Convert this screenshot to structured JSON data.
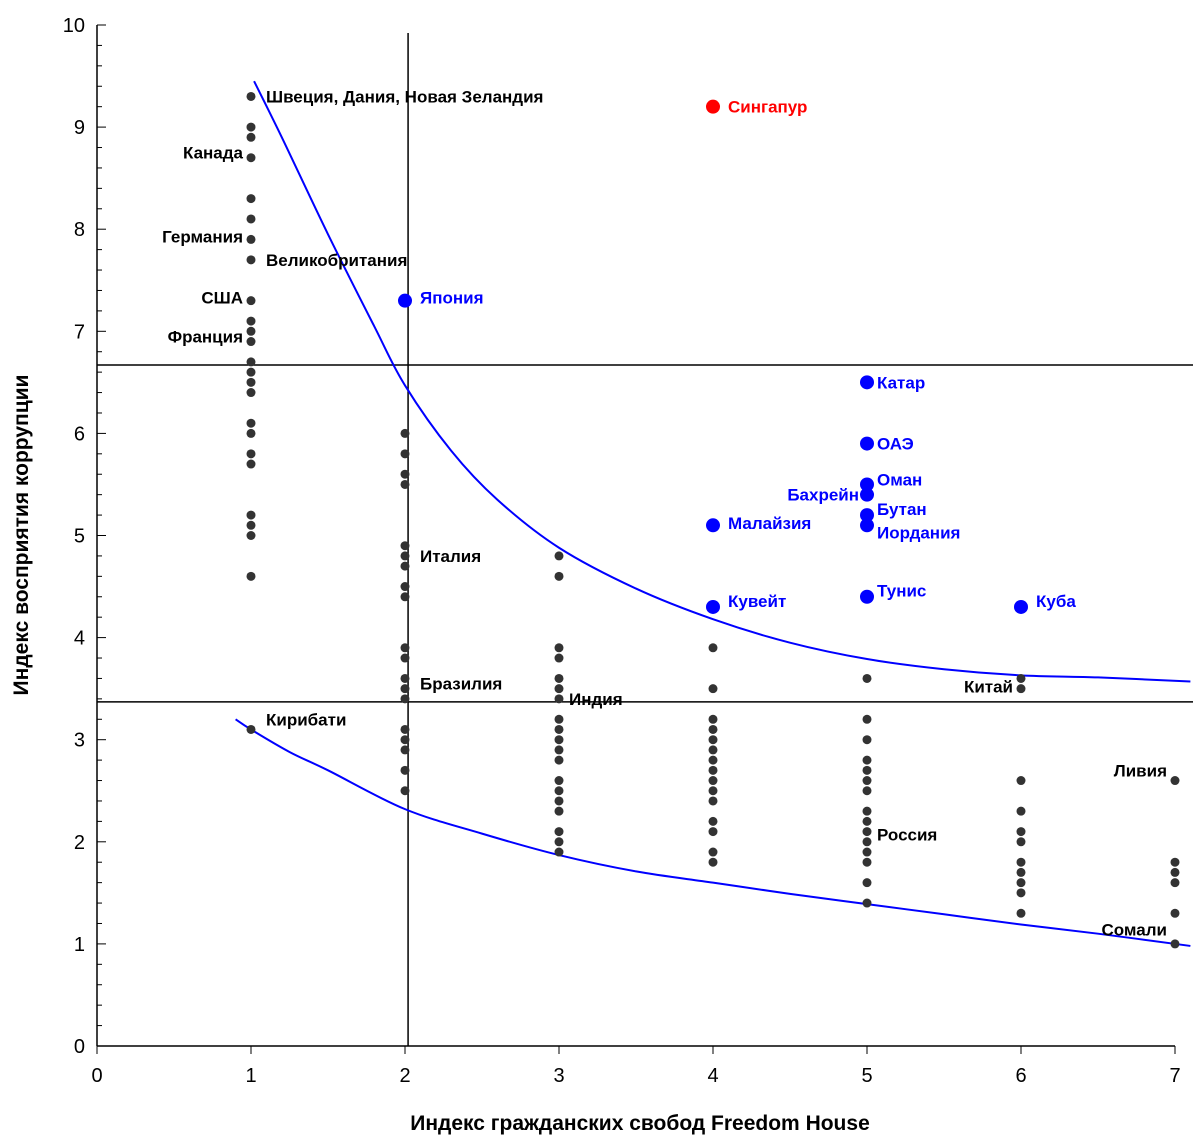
{
  "chart_data": {
    "type": "scatter",
    "xlabel": "Индекс гражданских свобод Freedom House",
    "ylabel": "Индекс восприятия коррупции",
    "xlim": [
      0,
      7
    ],
    "ylim": [
      0,
      10
    ],
    "xticks": [
      "0",
      "1",
      "2",
      "3",
      "4",
      "5",
      "6",
      "7"
    ],
    "yticks": [
      "0",
      "1",
      "2",
      "3",
      "4",
      "5",
      "6",
      "7",
      "8",
      "9",
      "10"
    ],
    "grid": false,
    "colors": {
      "gray": "#333333",
      "blue": "#0000ff",
      "red": "#ff0000",
      "ref_line": "#000000",
      "curve": "#0000ff"
    },
    "reference_lines": {
      "vertical_x": 2.02,
      "horizontal_y": [
        6.67,
        3.37
      ]
    },
    "series": [
      {
        "color": "gray",
        "points": [
          [
            1,
            9.3
          ],
          [
            1,
            9.0
          ],
          [
            1,
            8.9
          ],
          [
            1,
            8.7
          ],
          [
            1,
            8.3
          ],
          [
            1,
            8.1
          ],
          [
            1,
            7.9
          ],
          [
            1,
            7.7
          ],
          [
            1,
            7.3
          ],
          [
            1,
            7.1
          ],
          [
            1,
            7.0
          ],
          [
            1,
            6.9
          ],
          [
            1,
            6.7
          ],
          [
            1,
            6.6
          ],
          [
            1,
            6.5
          ],
          [
            1,
            6.4
          ],
          [
            1,
            6.1
          ],
          [
            1,
            6.0
          ],
          [
            1,
            5.8
          ],
          [
            1,
            5.7
          ],
          [
            1,
            5.2
          ],
          [
            1,
            5.1
          ],
          [
            1,
            5.0
          ],
          [
            1,
            4.6
          ],
          [
            1,
            3.1
          ],
          [
            2,
            6.0
          ],
          [
            2,
            5.8
          ],
          [
            2,
            5.6
          ],
          [
            2,
            5.5
          ],
          [
            2,
            4.9
          ],
          [
            2,
            4.8
          ],
          [
            2,
            4.7
          ],
          [
            2,
            4.5
          ],
          [
            2,
            4.4
          ],
          [
            2,
            3.9
          ],
          [
            2,
            3.8
          ],
          [
            2,
            3.6
          ],
          [
            2,
            3.5
          ],
          [
            2,
            3.4
          ],
          [
            2,
            3.1
          ],
          [
            2,
            3.0
          ],
          [
            2,
            2.9
          ],
          [
            2,
            2.7
          ],
          [
            2,
            2.5
          ],
          [
            3,
            4.8
          ],
          [
            3,
            4.6
          ],
          [
            3,
            3.9
          ],
          [
            3,
            3.8
          ],
          [
            3,
            3.6
          ],
          [
            3,
            3.5
          ],
          [
            3,
            3.4
          ],
          [
            3,
            3.2
          ],
          [
            3,
            3.1
          ],
          [
            3,
            3.0
          ],
          [
            3,
            2.9
          ],
          [
            3,
            2.8
          ],
          [
            3,
            2.6
          ],
          [
            3,
            2.5
          ],
          [
            3,
            2.4
          ],
          [
            3,
            2.3
          ],
          [
            3,
            2.1
          ],
          [
            3,
            2.0
          ],
          [
            3,
            1.9
          ],
          [
            4,
            3.9
          ],
          [
            4,
            3.5
          ],
          [
            4,
            3.2
          ],
          [
            4,
            3.1
          ],
          [
            4,
            3.0
          ],
          [
            4,
            2.9
          ],
          [
            4,
            2.8
          ],
          [
            4,
            2.7
          ],
          [
            4,
            2.6
          ],
          [
            4,
            2.5
          ],
          [
            4,
            2.4
          ],
          [
            4,
            2.2
          ],
          [
            4,
            2.1
          ],
          [
            4,
            1.9
          ],
          [
            4,
            1.8
          ],
          [
            5,
            3.6
          ],
          [
            5,
            3.2
          ],
          [
            5,
            3.0
          ],
          [
            5,
            2.8
          ],
          [
            5,
            2.7
          ],
          [
            5,
            2.6
          ],
          [
            5,
            2.5
          ],
          [
            5,
            2.3
          ],
          [
            5,
            2.2
          ],
          [
            5,
            2.1
          ],
          [
            5,
            2.0
          ],
          [
            5,
            1.9
          ],
          [
            5,
            1.8
          ],
          [
            5,
            1.6
          ],
          [
            5,
            1.4
          ],
          [
            6,
            3.6
          ],
          [
            6,
            3.5
          ],
          [
            6,
            2.6
          ],
          [
            6,
            2.3
          ],
          [
            6,
            2.1
          ],
          [
            6,
            2.0
          ],
          [
            6,
            1.8
          ],
          [
            6,
            1.7
          ],
          [
            6,
            1.6
          ],
          [
            6,
            1.5
          ],
          [
            6,
            1.3
          ],
          [
            7,
            2.6
          ],
          [
            7,
            1.8
          ],
          [
            7,
            1.7
          ],
          [
            7,
            1.6
          ],
          [
            7,
            1.3
          ],
          [
            7,
            1.0
          ]
        ]
      },
      {
        "color": "blue",
        "points": [
          [
            2,
            7.3
          ],
          [
            5,
            6.5
          ],
          [
            5,
            5.9
          ],
          [
            5,
            5.5
          ],
          [
            5,
            5.4
          ],
          [
            5,
            5.2
          ],
          [
            5,
            5.1
          ],
          [
            4,
            5.1
          ],
          [
            4,
            4.3
          ],
          [
            5,
            4.4
          ],
          [
            6,
            4.3
          ]
        ]
      },
      {
        "color": "red",
        "points": [
          [
            4,
            9.2
          ]
        ]
      }
    ],
    "annotations": [
      {
        "text": "Швеция, Дания, Новая Зеландия",
        "x": 1,
        "y": 9.3,
        "color": "black",
        "anchor": "right"
      },
      {
        "text": "Канада",
        "x": 1,
        "y": 8.75,
        "color": "black",
        "anchor": "left"
      },
      {
        "text": "Германия",
        "x": 1,
        "y": 7.93,
        "color": "black",
        "anchor": "left"
      },
      {
        "text": "Великобритания",
        "x": 1,
        "y": 7.7,
        "color": "black",
        "anchor": "right"
      },
      {
        "text": "США",
        "x": 1,
        "y": 7.33,
        "color": "black",
        "anchor": "left"
      },
      {
        "text": "Франция",
        "x": 1,
        "y": 6.95,
        "color": "black",
        "anchor": "left"
      },
      {
        "text": "Кирибати",
        "x": 1,
        "y": 3.2,
        "color": "black",
        "anchor": "right"
      },
      {
        "text": "Италия",
        "x": 2,
        "y": 4.8,
        "color": "black",
        "anchor": "right"
      },
      {
        "text": "Бразилия",
        "x": 2,
        "y": 3.55,
        "color": "black",
        "anchor": "right"
      },
      {
        "text": "Япония",
        "x": 2,
        "y": 7.33,
        "color": "blue",
        "anchor": "right"
      },
      {
        "text": "Индия",
        "x": 3,
        "y": 3.4,
        "color": "black",
        "anchor": "right-tight"
      },
      {
        "text": "Сингапур",
        "x": 4,
        "y": 9.2,
        "color": "red",
        "anchor": "right"
      },
      {
        "text": "Малайзия",
        "x": 4,
        "y": 5.12,
        "color": "blue",
        "anchor": "right"
      },
      {
        "text": "Кувейт",
        "x": 4,
        "y": 4.36,
        "color": "blue",
        "anchor": "right"
      },
      {
        "text": "Катар",
        "x": 5,
        "y": 6.5,
        "color": "blue",
        "anchor": "right-tight"
      },
      {
        "text": "ОАЭ",
        "x": 5,
        "y": 5.9,
        "color": "blue",
        "anchor": "right-tight"
      },
      {
        "text": "Оман",
        "x": 5,
        "y": 5.55,
        "color": "blue",
        "anchor": "right-tight"
      },
      {
        "text": "Бахрейн",
        "x": 5,
        "y": 5.4,
        "color": "blue",
        "anchor": "left"
      },
      {
        "text": "Бутан",
        "x": 5,
        "y": 5.26,
        "color": "blue",
        "anchor": "right-tight"
      },
      {
        "text": "Иордания",
        "x": 5,
        "y": 5.03,
        "color": "blue",
        "anchor": "right-tight"
      },
      {
        "text": "Тунис",
        "x": 5,
        "y": 4.46,
        "color": "blue",
        "anchor": "right-tight"
      },
      {
        "text": "Россия",
        "x": 5,
        "y": 2.07,
        "color": "black",
        "anchor": "right-tight"
      },
      {
        "text": "Куба",
        "x": 6,
        "y": 4.36,
        "color": "blue",
        "anchor": "right"
      },
      {
        "text": "Китай",
        "x": 6,
        "y": 3.52,
        "color": "black",
        "anchor": "left"
      },
      {
        "text": "Ливия",
        "x": 7,
        "y": 2.7,
        "color": "black",
        "anchor": "left"
      },
      {
        "text": "Сомали",
        "x": 7,
        "y": 1.14,
        "color": "black",
        "anchor": "left"
      }
    ],
    "curves": [
      {
        "color": "blue",
        "points": [
          [
            1.02,
            9.45
          ],
          [
            1.2,
            8.9
          ],
          [
            1.5,
            7.95
          ],
          [
            1.8,
            7.05
          ],
          [
            2.0,
            6.47
          ],
          [
            2.3,
            5.83
          ],
          [
            2.6,
            5.35
          ],
          [
            3.0,
            4.88
          ],
          [
            3.5,
            4.48
          ],
          [
            4.0,
            4.18
          ],
          [
            4.5,
            3.95
          ],
          [
            5.0,
            3.79
          ],
          [
            5.5,
            3.69
          ],
          [
            6.0,
            3.63
          ],
          [
            6.5,
            3.61
          ],
          [
            7.1,
            3.57
          ]
        ]
      },
      {
        "color": "blue",
        "points": [
          [
            0.9,
            3.2
          ],
          [
            1.0,
            3.1
          ],
          [
            1.25,
            2.88
          ],
          [
            1.5,
            2.7
          ],
          [
            2.0,
            2.32
          ],
          [
            2.5,
            2.08
          ],
          [
            3.0,
            1.87
          ],
          [
            3.5,
            1.71
          ],
          [
            4.0,
            1.6
          ],
          [
            4.5,
            1.49
          ],
          [
            5.0,
            1.39
          ],
          [
            5.5,
            1.29
          ],
          [
            6.0,
            1.19
          ],
          [
            6.5,
            1.1
          ],
          [
            7.1,
            0.98
          ]
        ]
      }
    ]
  }
}
